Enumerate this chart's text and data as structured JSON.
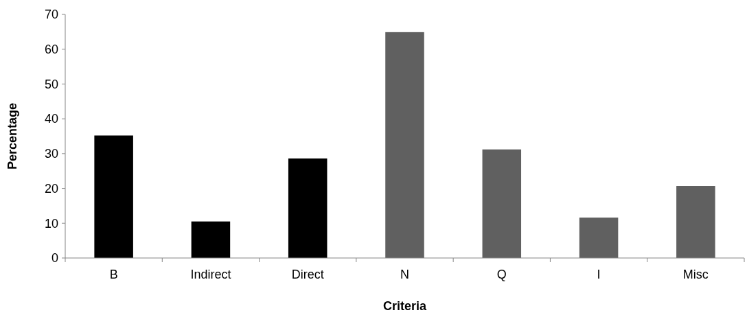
{
  "chart_data": {
    "type": "bar",
    "xlabel": "Criteria",
    "ylabel": "Percentage",
    "categories": [
      "B",
      "Indirect",
      "Direct",
      "N",
      "Q",
      "I",
      "Misc"
    ],
    "values": [
      35.2,
      10.5,
      28.6,
      64.9,
      31.2,
      11.6,
      20.7
    ],
    "colors": [
      "#000000",
      "#000000",
      "#000000",
      "#606060",
      "#606060",
      "#606060",
      "#606060"
    ],
    "ylim": [
      0,
      70
    ],
    "yticks": [
      0,
      10,
      20,
      30,
      40,
      50,
      60,
      70
    ],
    "grid": false
  }
}
